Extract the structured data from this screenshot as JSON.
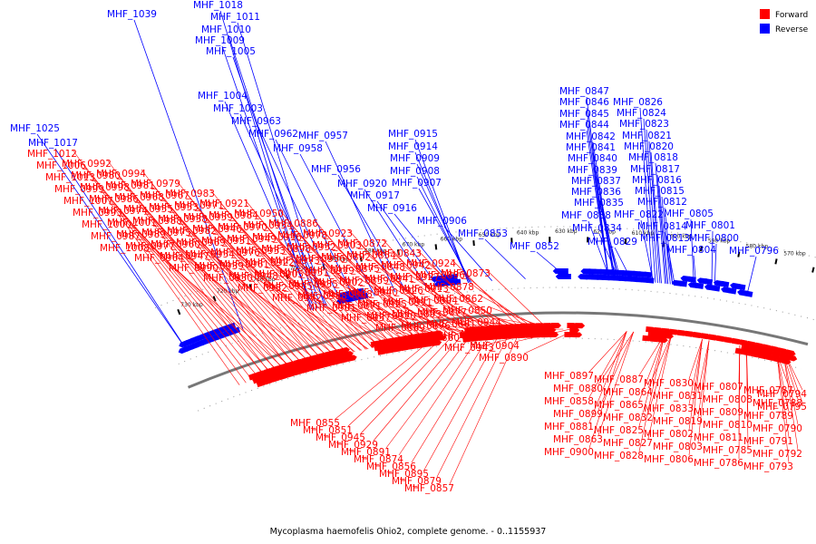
{
  "caption": "Mycoplasma haemofelis Ohio2, complete genome. - 0..1155937",
  "legend": [
    {
      "label": "Forward",
      "color": "#ff0000"
    },
    {
      "label": "Reverse",
      "color": "#0000ff"
    }
  ],
  "ticks": [
    "730 kbp",
    "720 kbp",
    "710 kbp",
    "700 kbp",
    "690 kbp",
    "680 kbp",
    "670 kbp",
    "660 kbp",
    "650 kbp",
    "640 kbp",
    "630 kbp",
    "620 kbp",
    "610 kbp",
    "600 kbp",
    "590 kbp",
    "580 kbp",
    "570 kbp",
    "560 kbp"
  ],
  "reverse_labels": [
    "MHF_1039",
    "MHF_1018",
    "MHF_1011",
    "MHF_1010",
    "MHF_1009",
    "MHF_1005",
    "MHF_1004",
    "MHF_1003",
    "MHF_1025",
    "MHF_1017",
    "MHF_0963",
    "MHF_0962",
    "MHF_0957",
    "MHF_0958",
    "MHF_0956",
    "MHF_0915",
    "MHF_0914",
    "MHF_0909",
    "MHF_0908",
    "MHF_0920",
    "MHF_0907",
    "MHF_0917",
    "MHF_0916",
    "MHF_0906",
    "MHF_0853",
    "MHF_0852",
    "MHF_0847",
    "MHF_0846",
    "MHF_0845",
    "MHF_0844",
    "MHF_0842",
    "MHF_0841",
    "MHF_0840",
    "MHF_0839",
    "MHF_0837",
    "MHF_0836",
    "MHF_0835",
    "MHF_0838",
    "MHF_0834",
    "MHF_0829",
    "MHF_0826",
    "MHF_0824",
    "MHF_0823",
    "MHF_0821",
    "MHF_0820",
    "MHF_0818",
    "MHF_0817",
    "MHF_0816",
    "MHF_0815",
    "MHF_0812",
    "MHF_0822",
    "MHF_0814",
    "MHF_0813",
    "MHF_0805",
    "MHF_0801",
    "MHF_0800",
    "MHF_0804",
    "MHF_0796"
  ],
  "forward_labels": [
    "MHF_1012",
    "MHF_1006",
    "MHF_1013",
    "MHF_0999",
    "MHF_1007",
    "MHF_0993",
    "MHF_1000",
    "MHF_0987",
    "MHF_1008",
    "MHF_0992",
    "MHF_0980",
    "MHF_0998",
    "MHF_0986",
    "MHF_0974",
    "MHF_1001",
    "MHF_0989",
    "MHF_0977",
    "MHF_0964",
    "MHF_0994",
    "MHF_0981",
    "MHF_0968",
    "MHF_0955",
    "MHF_0988",
    "MHF_0975",
    "MHF_0960",
    "MHF_0947",
    "MHF_0990",
    "MHF_0979",
    "MHF_0967",
    "MHF_0953",
    "MHF_0938",
    "MHF_0982",
    "MHF_0969",
    "MHF_0954",
    "MHF_0939",
    "MHF_0930",
    "MHF_0983",
    "MHF_0971",
    "MHF_0959",
    "MHF_0946",
    "MHF_0931",
    "MHF_0976",
    "MHF_0961",
    "MHF_0948",
    "MHF_0932",
    "MHF_0921",
    "MHF_0984",
    "MHF_0970",
    "MHF_0949",
    "MHF_0933",
    "MHF_0922",
    "MHF_0905",
    "MHF_0985",
    "MHF_0972",
    "MHF_0950",
    "MHF_0934",
    "MHF_0916",
    "MHF_0898",
    "MHF_0973",
    "MHF_0951",
    "MHF_0935",
    "MHF_0918",
    "MHF_0901",
    "MHF_0886",
    "MHF_0978",
    "MHF_0952",
    "MHF_0936",
    "MHF_0919",
    "MHF_0902",
    "MHF_0888",
    "MHF_0871",
    "MHF_0937",
    "MHF_0923",
    "MHF_0903",
    "MHF_0892",
    "MHF_0875",
    "MHF_0859",
    "MHF_0940",
    "MHF_0925",
    "MHF_0910",
    "MHF_0889",
    "MHF_0872",
    "MHF_0854",
    "MHF_0848",
    "MHF_0941",
    "MHF_0926",
    "MHF_0911",
    "MHF_0893",
    "MHF_0876",
    "MHF_0860",
    "MHF_0843",
    "MHF_0942",
    "MHF_0927",
    "MHF_0913",
    "MHF_0894",
    "MHF_0877",
    "MHF_0861",
    "MHF_0849",
    "MHF_0943",
    "MHF_0924",
    "MHF_0896",
    "MHF_0878",
    "MHF_0862",
    "MHF_0850",
    "MHF_0944",
    "MHF_0928",
    "MHF_0904",
    "MHF_0890",
    "MHF_0873",
    "MHF_0855",
    "MHF_0851",
    "MHF_0945",
    "MHF_0929",
    "MHF_0891",
    "MHF_0874",
    "MHF_0856",
    "MHF_0895",
    "MHF_0879",
    "MHF_0857",
    "MHF_0897",
    "MHF_0880",
    "MHF_0858",
    "MHF_0899",
    "MHF_0881",
    "MHF_0863",
    "MHF_0900",
    "MHF_0887",
    "MHF_0864",
    "MHF_0865",
    "MHF_0832",
    "MHF_0825",
    "MHF_0827",
    "MHF_0828",
    "MHF_0830",
    "MHF_0831",
    "MHF_0833",
    "MHF_0819",
    "MHF_0802",
    "MHF_0803",
    "MHF_0806",
    "MHF_0807",
    "MHF_0808",
    "MHF_0809",
    "MHF_0810",
    "MHF_0811",
    "MHF_0785",
    "MHF_0786",
    "MHF_0787",
    "MHF_0788",
    "MHF_0789",
    "MHF_0790",
    "MHF_0791",
    "MHF_0792",
    "MHF_0793",
    "MHF_0794",
    "MHF_0795"
  ]
}
